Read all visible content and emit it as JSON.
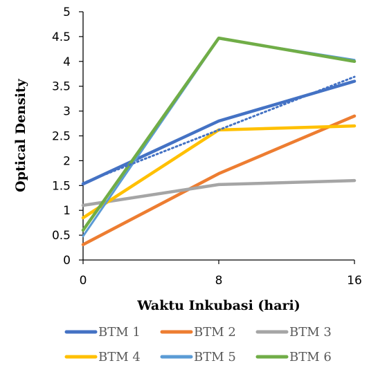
{
  "chart_data": {
    "type": "line",
    "title": "",
    "xlabel": "Waktu Inkubasi (hari)",
    "ylabel": "Optical Density",
    "x": [
      0,
      8,
      16
    ],
    "x_tick_labels": [
      "0",
      "8",
      "16"
    ],
    "ylim": [
      0,
      5
    ],
    "y_tick_labels": [
      "0",
      "0.5",
      "1",
      "1.5",
      "2",
      "2.5",
      "3",
      "3.5",
      "4",
      "4.5",
      "5"
    ],
    "grid": false,
    "legend_position": "bottom",
    "series": [
      {
        "name": "BTM 1",
        "color": "#4472C4",
        "values": [
          1.53,
          2.8,
          3.6
        ]
      },
      {
        "name": "BTM 2",
        "color": "#ED7D31",
        "values": [
          0.31,
          1.74,
          2.9
        ]
      },
      {
        "name": "BTM 3",
        "color": "#A5A5A5",
        "values": [
          1.1,
          1.52,
          1.6
        ]
      },
      {
        "name": "BTM 4",
        "color": "#FFC000",
        "values": [
          0.85,
          2.62,
          2.7
        ]
      },
      {
        "name": "BTM 5",
        "color": "#5B9BD5",
        "values": [
          0.48,
          4.46,
          4.03
        ]
      },
      {
        "name": "BTM 6",
        "color": "#70AD47",
        "values": [
          0.6,
          4.47,
          4.0
        ]
      }
    ],
    "trendline": {
      "series": "BTM 1",
      "type": "linear",
      "color": "#4472C4",
      "style": "dotted",
      "values": [
        1.55,
        2.62,
        3.69
      ]
    }
  }
}
